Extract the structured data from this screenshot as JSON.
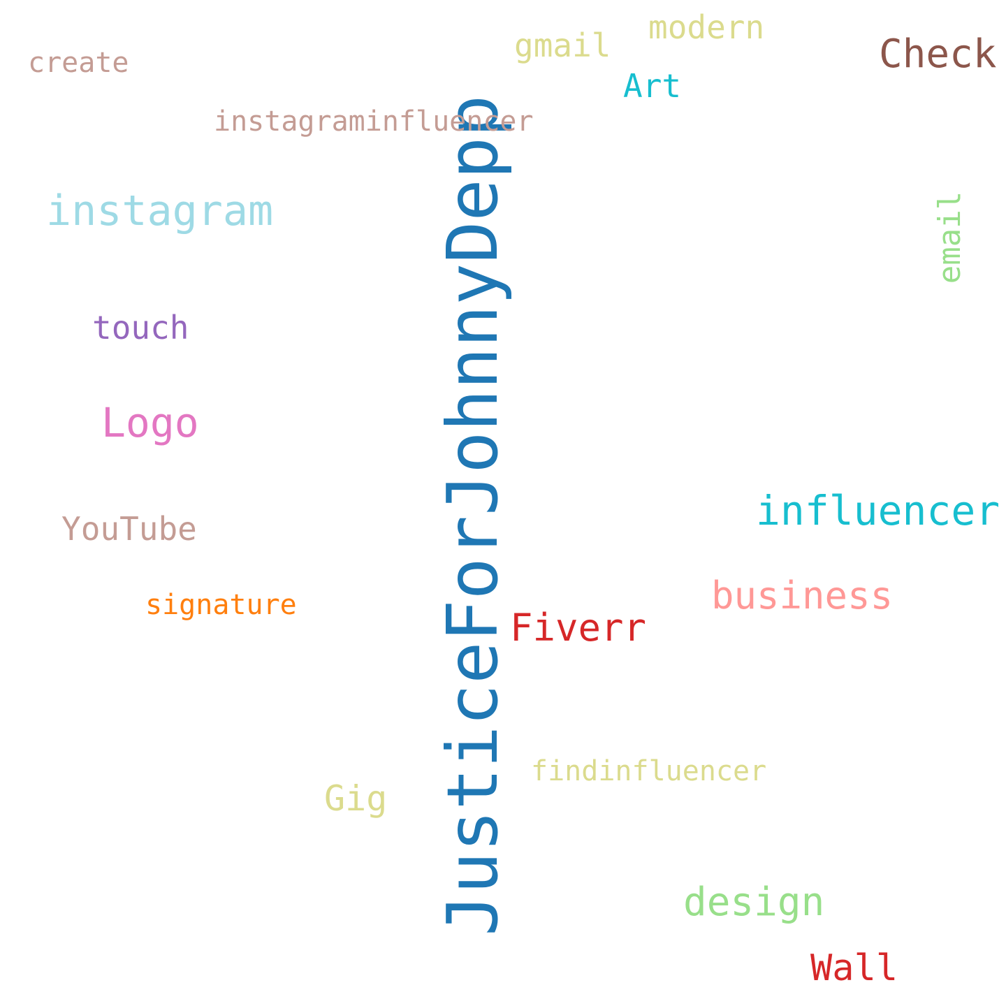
{
  "words": [
    {
      "key": "justice",
      "text": "JusticeForJohnnyDepp",
      "color": "#1f77b4"
    },
    {
      "key": "instagram",
      "text": "instagram",
      "color": "#9edae5"
    },
    {
      "key": "influencer",
      "text": "influencer",
      "color": "#17becf"
    },
    {
      "key": "business",
      "text": "business",
      "color": "#ff9896"
    },
    {
      "key": "check",
      "text": "Check",
      "color": "#8c564b"
    },
    {
      "key": "logo",
      "text": "Logo",
      "color": "#e377c2"
    },
    {
      "key": "fiverr",
      "text": "Fiverr",
      "color": "#d62728"
    },
    {
      "key": "design",
      "text": "design",
      "color": "#98df8a"
    },
    {
      "key": "wall",
      "text": "Wall",
      "color": "#d62728"
    },
    {
      "key": "instagraminfluencer",
      "text": "instagraminfluencer",
      "color": "#c49c94"
    },
    {
      "key": "youtube",
      "text": "YouTube",
      "color": "#c49c94"
    },
    {
      "key": "touch",
      "text": "touch",
      "color": "#9467bd"
    },
    {
      "key": "modern",
      "text": "modern",
      "color": "#dbdb8d"
    },
    {
      "key": "gmail",
      "text": "gmail",
      "color": "#dbdb8d"
    },
    {
      "key": "create",
      "text": "create",
      "color": "#c49c94"
    },
    {
      "key": "art",
      "text": "Art",
      "color": "#17becf"
    },
    {
      "key": "email",
      "text": "email",
      "color": "#98df8a"
    },
    {
      "key": "signature",
      "text": "signature",
      "color": "#ff7f0e"
    },
    {
      "key": "gig",
      "text": "Gig",
      "color": "#dbdb8d"
    },
    {
      "key": "findinfluencer",
      "text": "findinfluencer",
      "color": "#dbdb8d"
    }
  ]
}
